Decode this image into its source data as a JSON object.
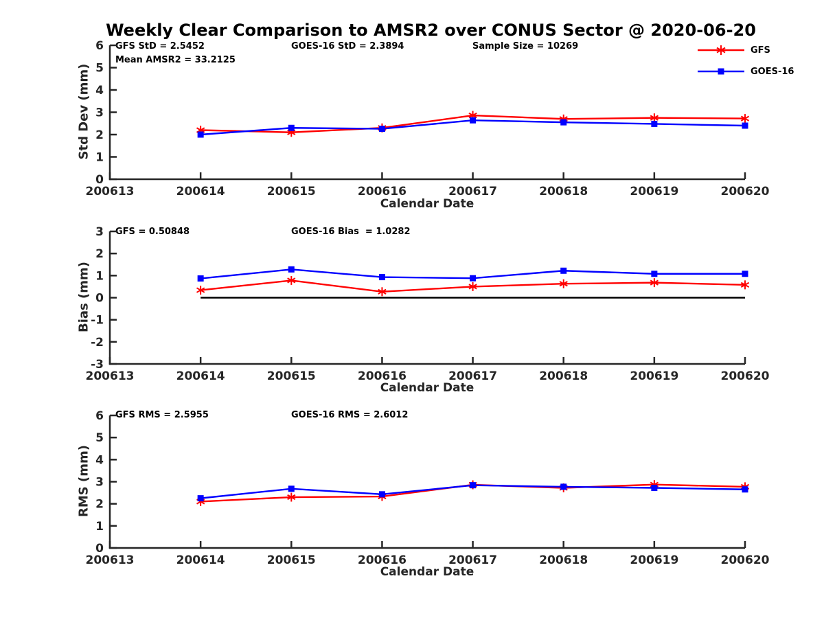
{
  "title": "Weekly Clear Comparison to AMSR2 over CONUS Sector @ 2020-06-20",
  "colors": {
    "axis": "#262626",
    "text": "#000000",
    "gfs": "#ff0000",
    "goes16": "#0000ff",
    "zero_line": "#000000",
    "background": "#ffffff"
  },
  "legend": {
    "position": "top-right",
    "entries": [
      {
        "label": "GFS",
        "color": "#ff0000",
        "marker": "asterisk"
      },
      {
        "label": "GOES-16",
        "color": "#0000ff",
        "marker": "square"
      }
    ]
  },
  "chart_data": [
    {
      "type": "line",
      "ylabel": "Std Dev (mm)",
      "xlabel": "Calendar Date",
      "ylim": [
        0,
        6
      ],
      "yticks": [
        0,
        1,
        2,
        3,
        4,
        5,
        6
      ],
      "categories": [
        "200613",
        "200614",
        "200615",
        "200616",
        "200617",
        "200618",
        "200619",
        "200620"
      ],
      "annotations": [
        {
          "text": "GFS StD = 2.5452"
        },
        {
          "text": "Mean AMSR2 = 33.2125"
        },
        {
          "text": "GOES-16 StD = 2.3894"
        },
        {
          "text": "Sample Size = 10269"
        }
      ],
      "series": [
        {
          "name": "GFS",
          "color": "#ff0000",
          "marker": "asterisk",
          "x": [
            "200614",
            "200615",
            "200616",
            "200617",
            "200618",
            "200619",
            "200620"
          ],
          "values": [
            2.2,
            2.1,
            2.3,
            2.86,
            2.7,
            2.75,
            2.72
          ]
        },
        {
          "name": "GOES-16",
          "color": "#0000ff",
          "marker": "square",
          "x": [
            "200614",
            "200615",
            "200616",
            "200617",
            "200618",
            "200619",
            "200620"
          ],
          "values": [
            2.0,
            2.3,
            2.26,
            2.64,
            2.55,
            2.48,
            2.4
          ]
        }
      ]
    },
    {
      "type": "line",
      "ylabel": "Bias (mm)",
      "xlabel": "Calendar Date",
      "ylim": [
        -3,
        3
      ],
      "yticks": [
        -3,
        -2,
        -1,
        0,
        1,
        2,
        3
      ],
      "categories": [
        "200613",
        "200614",
        "200615",
        "200616",
        "200617",
        "200618",
        "200619",
        "200620"
      ],
      "annotations": [
        {
          "text": "GFS = 0.50848"
        },
        {
          "text": "GOES-16 Bias  = 1.0282"
        }
      ],
      "zero_line": {
        "from": "200614",
        "to": "200620",
        "y": 0
      },
      "series": [
        {
          "name": "GFS",
          "color": "#ff0000",
          "marker": "asterisk",
          "x": [
            "200614",
            "200615",
            "200616",
            "200617",
            "200618",
            "200619",
            "200620"
          ],
          "values": [
            0.34,
            0.78,
            0.27,
            0.5,
            0.63,
            0.68,
            0.58
          ]
        },
        {
          "name": "GOES-16",
          "color": "#0000ff",
          "marker": "square",
          "x": [
            "200614",
            "200615",
            "200616",
            "200617",
            "200618",
            "200619",
            "200620"
          ],
          "values": [
            0.87,
            1.28,
            0.93,
            0.88,
            1.22,
            1.08,
            1.08
          ]
        }
      ]
    },
    {
      "type": "line",
      "ylabel": "RMS (mm)",
      "xlabel": "Calendar Date",
      "ylim": [
        0,
        6
      ],
      "yticks": [
        0,
        1,
        2,
        3,
        4,
        5,
        6
      ],
      "categories": [
        "200613",
        "200614",
        "200615",
        "200616",
        "200617",
        "200618",
        "200619",
        "200620"
      ],
      "annotations": [
        {
          "text": "GFS RMS = 2.5955"
        },
        {
          "text": "GOES-16 RMS = 2.6012"
        }
      ],
      "series": [
        {
          "name": "GFS",
          "color": "#ff0000",
          "marker": "asterisk",
          "x": [
            "200614",
            "200615",
            "200616",
            "200617",
            "200618",
            "200619",
            "200620"
          ],
          "values": [
            2.1,
            2.3,
            2.33,
            2.86,
            2.72,
            2.87,
            2.77
          ]
        },
        {
          "name": "GOES-16",
          "color": "#0000ff",
          "marker": "square",
          "x": [
            "200614",
            "200615",
            "200616",
            "200617",
            "200618",
            "200619",
            "200620"
          ],
          "values": [
            2.25,
            2.68,
            2.43,
            2.84,
            2.77,
            2.72,
            2.65
          ]
        }
      ]
    }
  ]
}
